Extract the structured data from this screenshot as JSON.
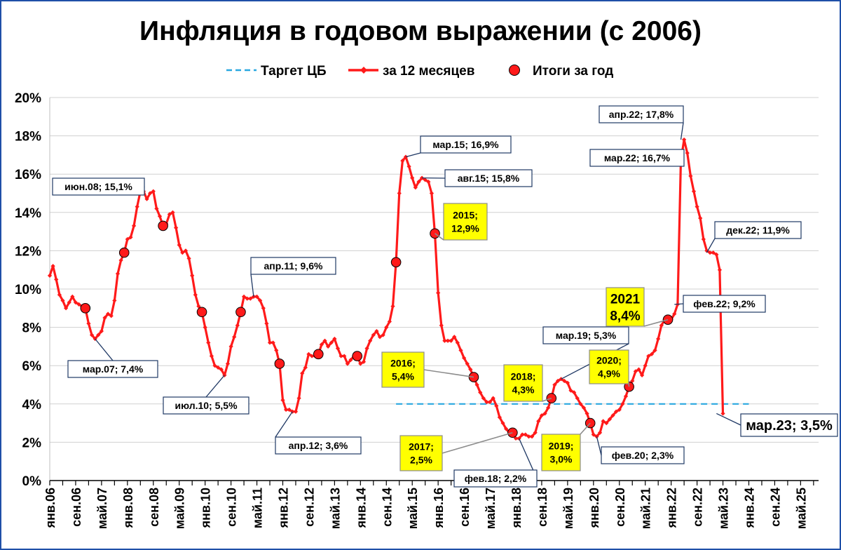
{
  "chart_data": {
    "type": "line",
    "title": "Инфляция в годовом выражении (с 2006)",
    "legend": {
      "position": "top",
      "items": [
        {
          "label": "Таргет ЦБ",
          "color": "#29a8e0",
          "style": "dashed"
        },
        {
          "label": "за 12 месяцев",
          "color": "#ff1a1a",
          "style": "line-diamond"
        },
        {
          "label": "Итоги за год",
          "color": "#ff1a1a",
          "style": "circle"
        }
      ]
    },
    "y_ticks": [
      "0%",
      "2%",
      "4%",
      "6%",
      "8%",
      "10%",
      "12%",
      "14%",
      "16%",
      "18%",
      "20%"
    ],
    "ylim": [
      0,
      20
    ],
    "x_ticks": [
      "янв.06",
      "сен.06",
      "май.07",
      "янв.08",
      "сен.08",
      "май.09",
      "янв.10",
      "сен.10",
      "май.11",
      "янв.12",
      "сен.12",
      "май.13",
      "янв.14",
      "сен.14",
      "май.15",
      "янв.16",
      "сен.16",
      "май.17",
      "янв.18",
      "сен.18",
      "май.19",
      "янв.20",
      "сен.20",
      "май.21",
      "янв.22",
      "сен.22",
      "май.23",
      "янв.24",
      "сен.24",
      "май.25"
    ],
    "x_start": "янв.06",
    "gridlines": "horizontal",
    "series": [
      {
        "name": "за 12 месяцев",
        "color": "#ff1a1a",
        "values": [
          10.7,
          11.2,
          10.5,
          9.7,
          9.4,
          9.0,
          9.3,
          9.6,
          9.3,
          9.2,
          9.1,
          9.0,
          8.2,
          7.6,
          7.4,
          7.6,
          7.8,
          8.5,
          8.7,
          8.6,
          9.4,
          10.8,
          11.5,
          11.9,
          12.6,
          12.7,
          13.3,
          14.3,
          15.1,
          15.1,
          14.7,
          15.0,
          15.1,
          14.2,
          13.8,
          13.3,
          13.4,
          13.9,
          14.0,
          13.2,
          12.3,
          11.9,
          12.0,
          11.6,
          10.7,
          9.7,
          9.1,
          8.8,
          8.0,
          7.2,
          6.5,
          6.0,
          5.9,
          5.8,
          5.5,
          6.1,
          7.0,
          7.5,
          8.1,
          8.8,
          9.6,
          9.5,
          9.5,
          9.6,
          9.6,
          9.4,
          9.0,
          8.2,
          7.2,
          7.2,
          6.8,
          6.1,
          4.2,
          3.7,
          3.7,
          3.6,
          3.6,
          4.3,
          5.6,
          5.9,
          6.6,
          6.5,
          6.5,
          6.6,
          7.1,
          7.3,
          7.0,
          7.2,
          7.4,
          6.9,
          6.5,
          6.5,
          6.1,
          6.3,
          6.5,
          6.5,
          6.1,
          6.2,
          6.9,
          7.3,
          7.6,
          7.8,
          7.5,
          7.6,
          8.0,
          8.3,
          9.1,
          11.4,
          15.0,
          16.7,
          16.9,
          16.4,
          15.8,
          15.3,
          15.6,
          15.8,
          15.7,
          15.6,
          15.0,
          12.9,
          9.8,
          8.1,
          7.3,
          7.3,
          7.3,
          7.5,
          7.2,
          6.8,
          6.4,
          6.1,
          5.8,
          5.4,
          5.0,
          4.6,
          4.3,
          4.1,
          4.1,
          4.3,
          3.9,
          3.3,
          3.0,
          2.7,
          2.5,
          2.5,
          2.2,
          2.2,
          2.4,
          2.4,
          2.3,
          2.3,
          2.5,
          3.1,
          3.4,
          3.5,
          3.8,
          4.3,
          5.0,
          5.2,
          5.3,
          5.2,
          5.1,
          4.7,
          4.6,
          4.3,
          4.0,
          3.8,
          3.5,
          3.0,
          2.4,
          2.3,
          2.5,
          3.1,
          3.0,
          3.2,
          3.4,
          3.6,
          3.7,
          4.0,
          4.4,
          4.9,
          5.2,
          5.7,
          5.8,
          5.5,
          6.0,
          6.5,
          6.6,
          6.8,
          7.4,
          8.1,
          8.4,
          8.3,
          8.4,
          8.7,
          9.2,
          16.7,
          17.8,
          17.1,
          15.9,
          15.1,
          14.3,
          13.7,
          12.6,
          12.0,
          11.9,
          11.9,
          11.8,
          11.0,
          3.5
        ]
      },
      {
        "name": "Итоги за год",
        "color": "#ff1a1a",
        "points": [
          {
            "x": "дек.06",
            "y": 9.0
          },
          {
            "x": "дек.07",
            "y": 11.9
          },
          {
            "x": "дек.08",
            "y": 13.3
          },
          {
            "x": "дек.09",
            "y": 8.8
          },
          {
            "x": "дек.10",
            "y": 8.8
          },
          {
            "x": "дек.11",
            "y": 6.1
          },
          {
            "x": "дек.12",
            "y": 6.6
          },
          {
            "x": "дек.13",
            "y": 6.5
          },
          {
            "x": "дек.14",
            "y": 11.4
          },
          {
            "x": "дек.15",
            "y": 12.9
          },
          {
            "x": "дек.16",
            "y": 5.4
          },
          {
            "x": "дек.17",
            "y": 2.5
          },
          {
            "x": "дек.18",
            "y": 4.3
          },
          {
            "x": "дек.19",
            "y": 3.0
          },
          {
            "x": "дек.20",
            "y": 4.9
          },
          {
            "x": "дек.21",
            "y": 8.4
          }
        ]
      },
      {
        "name": "Таргет ЦБ",
        "color": "#29a8e0",
        "from": "дек.14",
        "to": "янв.24",
        "y": 4.0
      }
    ],
    "annotations": [
      {
        "text": "мар.07; 7,4%",
        "x": "мар.07",
        "y": 7.4,
        "style": "white"
      },
      {
        "text": "июн.08; 15,1%",
        "x": "июн.08",
        "y": 15.1,
        "style": "white"
      },
      {
        "text": "июл.10; 5,5%",
        "x": "июл.10",
        "y": 5.5,
        "style": "white"
      },
      {
        "text": "апр.11; 9,6%",
        "x": "апр.11",
        "y": 9.6,
        "style": "white"
      },
      {
        "text": "апр.12; 3,6%",
        "x": "апр.12",
        "y": 3.6,
        "style": "white"
      },
      {
        "text": "мар.15; 16,9%",
        "x": "мар.15",
        "y": 16.9,
        "style": "white"
      },
      {
        "text": "авг.15; 15,8%",
        "x": "авг.15",
        "y": 15.8,
        "style": "white"
      },
      {
        "text": "фев.18; 2,2%",
        "x": "фев.18",
        "y": 2.2,
        "style": "white"
      },
      {
        "text": "мар.19; 5,3%",
        "x": "мар.19",
        "y": 5.3,
        "style": "white"
      },
      {
        "text": "фев.20; 2,3%",
        "x": "фев.20",
        "y": 2.3,
        "style": "white"
      },
      {
        "text": "мар.22; 16,7%",
        "x": "мар.22",
        "y": 16.7,
        "style": "white"
      },
      {
        "text": "апр.22; 17,8%",
        "x": "апр.22",
        "y": 17.8,
        "style": "white"
      },
      {
        "text": "фев.22; 9,2%",
        "x": "фев.22",
        "y": 9.2,
        "style": "white"
      },
      {
        "text": "дек.22; 11,9%",
        "x": "дек.22",
        "y": 11.9,
        "style": "white"
      },
      {
        "text": "мар.23; 3,5%",
        "x": "мар.23",
        "y": 3.5,
        "style": "white-large"
      },
      {
        "text": "2015;\n12,9%",
        "x": "дек.15",
        "y": 12.9,
        "style": "yellow"
      },
      {
        "text": "2016;\n5,4%",
        "x": "дек.16",
        "y": 5.4,
        "style": "yellow"
      },
      {
        "text": "2017;\n2,5%",
        "x": "дек.17",
        "y": 2.5,
        "style": "yellow"
      },
      {
        "text": "2018;\n4,3%",
        "x": "дек.18",
        "y": 4.3,
        "style": "yellow"
      },
      {
        "text": "2019;\n3,0%",
        "x": "дек.19",
        "y": 3.0,
        "style": "yellow"
      },
      {
        "text": "2020;\n4,9%",
        "x": "дек.20",
        "y": 4.9,
        "style": "yellow"
      },
      {
        "text": "2021\n8,4%",
        "x": "дек.21",
        "y": 8.4,
        "style": "yellow-large"
      }
    ]
  }
}
